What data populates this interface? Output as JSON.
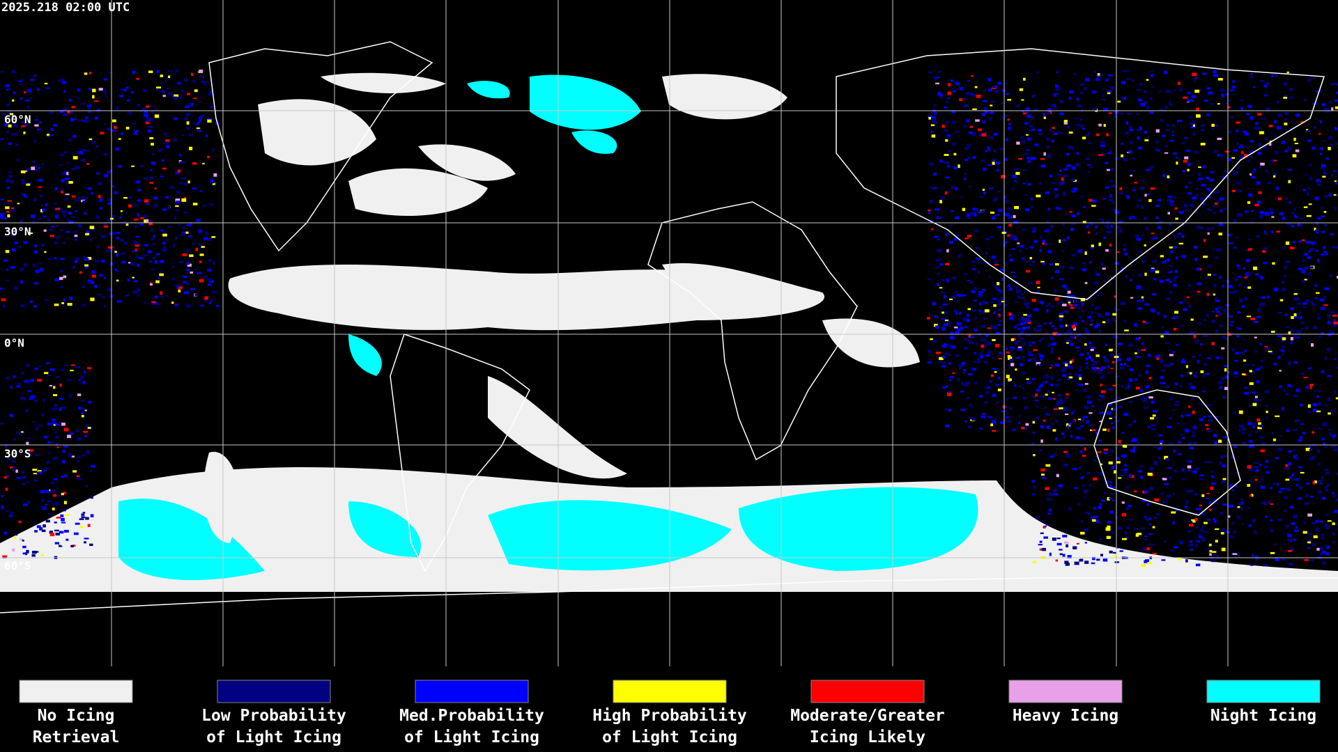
{
  "header": {
    "title": "2025.218 02:00 UTC"
  },
  "lat_labels": [
    "60°N",
    "30°N",
    "0°N",
    "30°S",
    "60°S"
  ],
  "legend": [
    {
      "color": "#f0f0f0",
      "line1": "No Icing",
      "line2": "Retrieval"
    },
    {
      "color": "#000080",
      "line1": "Low Probability",
      "line2": "of Light Icing"
    },
    {
      "color": "#0000ff",
      "line1": "Med.Probability",
      "line2": "of Light Icing"
    },
    {
      "color": "#ffff00",
      "line1": "High Probability",
      "line2": "of Light Icing"
    },
    {
      "color": "#ff0000",
      "line1": "Moderate/Greater",
      "line2": "Icing Likely"
    },
    {
      "color": "#e8a0e8",
      "line1": "Heavy Icing",
      "line2": ""
    },
    {
      "color": "#00ffff",
      "line1": "Night Icing",
      "line2": ""
    }
  ]
}
